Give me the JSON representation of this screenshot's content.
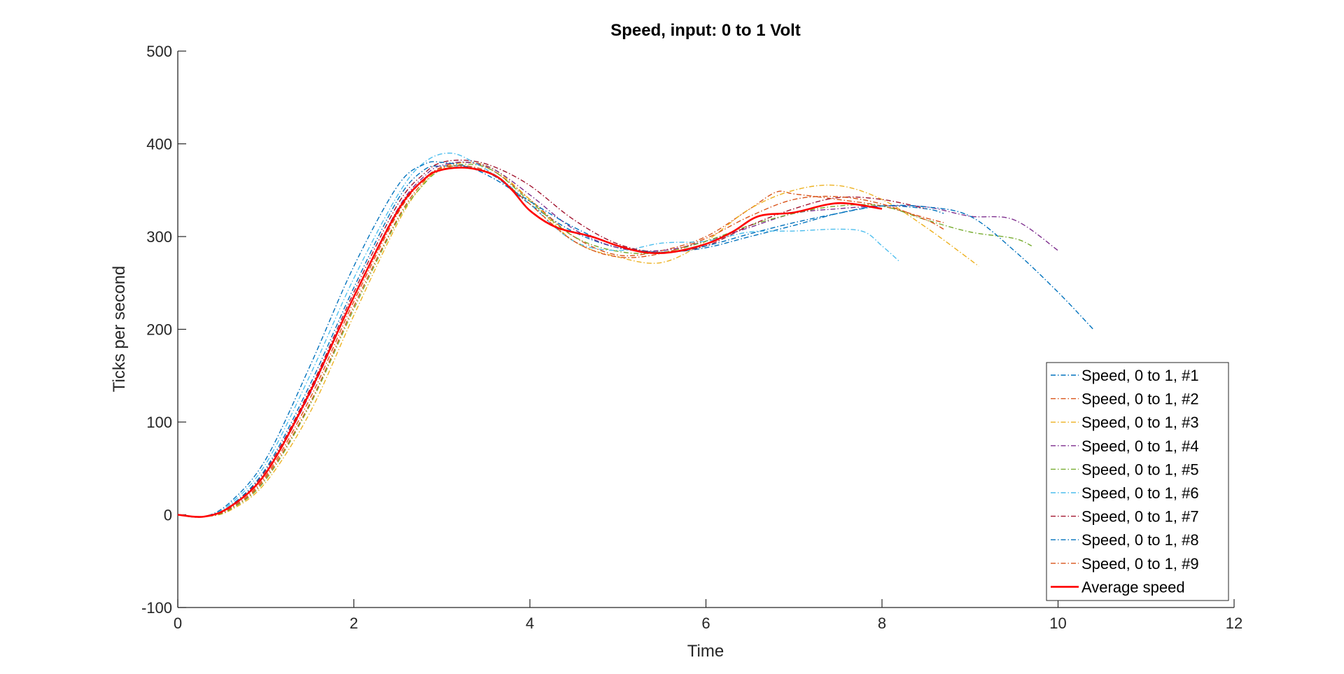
{
  "chart_data": {
    "type": "line",
    "title": "Speed, input: 0 to 1 Volt",
    "xlabel": "Time",
    "ylabel": "Ticks per second",
    "xlim": [
      0,
      12
    ],
    "ylim": [
      -100,
      500
    ],
    "xticks": [
      0,
      2,
      4,
      6,
      8,
      10,
      12
    ],
    "yticks": [
      -100,
      0,
      100,
      200,
      300,
      400,
      500
    ],
    "grid": false,
    "legend_position": "bottom-right",
    "series": [
      {
        "name": "Speed, 0 to 1, #1",
        "color": "#0072BD",
        "style": "dashdot",
        "x": [
          0,
          0.3,
          0.6,
          1.0,
          1.5,
          2.0,
          2.5,
          2.8,
          3.0,
          3.3,
          3.6,
          4.0,
          4.5,
          5.0,
          5.5,
          6.0,
          6.5,
          7.0,
          7.5,
          8.0,
          8.5,
          8.7
        ],
        "y": [
          0,
          -2,
          10,
          50,
          140,
          245,
          340,
          372,
          376,
          375,
          365,
          335,
          305,
          288,
          283,
          288,
          300,
          312,
          325,
          333,
          330,
          325
        ]
      },
      {
        "name": "Speed, 0 to 1, #2",
        "color": "#D95319",
        "style": "dashdot",
        "x": [
          0,
          0.3,
          0.6,
          1.0,
          1.5,
          2.0,
          2.5,
          2.8,
          3.0,
          3.3,
          3.6,
          4.0,
          4.5,
          5.0,
          5.5,
          6.0,
          6.5,
          6.8,
          7.0,
          7.5,
          8.0,
          8.5,
          8.7
        ],
        "y": [
          0,
          -2,
          6,
          40,
          120,
          225,
          320,
          360,
          375,
          380,
          370,
          340,
          300,
          280,
          285,
          300,
          330,
          348,
          346,
          340,
          333,
          320,
          315
        ]
      },
      {
        "name": "Speed, 0 to 1, #3",
        "color": "#EDB120",
        "style": "dashdot",
        "x": [
          0,
          0.3,
          0.6,
          1.0,
          1.5,
          2.0,
          2.5,
          2.8,
          3.0,
          3.3,
          3.6,
          4.0,
          4.5,
          5.0,
          5.5,
          6.0,
          6.5,
          7.0,
          7.5,
          8.0,
          8.5,
          9.1
        ],
        "y": [
          0,
          -2,
          5,
          35,
          110,
          215,
          315,
          358,
          373,
          380,
          372,
          340,
          295,
          278,
          272,
          295,
          330,
          350,
          355,
          340,
          310,
          268
        ]
      },
      {
        "name": "Speed, 0 to 1, #4",
        "color": "#7E2F8E",
        "style": "dashdot",
        "x": [
          0,
          0.3,
          0.6,
          1.0,
          1.5,
          2.0,
          2.5,
          2.8,
          3.0,
          3.3,
          3.6,
          4.0,
          4.5,
          5.0,
          5.5,
          6.0,
          6.5,
          7.0,
          7.5,
          8.0,
          8.5,
          9.0,
          9.5,
          10.0
        ],
        "y": [
          0,
          -2,
          8,
          45,
          130,
          235,
          330,
          365,
          377,
          380,
          372,
          345,
          308,
          288,
          285,
          295,
          310,
          325,
          330,
          333,
          332,
          322,
          318,
          285
        ]
      },
      {
        "name": "Speed, 0 to 1, #5",
        "color": "#77AC30",
        "style": "dashdot",
        "x": [
          0,
          0.3,
          0.6,
          1.0,
          1.5,
          2.0,
          2.5,
          2.8,
          3.0,
          3.3,
          3.6,
          4.0,
          4.5,
          5.0,
          5.5,
          6.0,
          6.5,
          7.0,
          7.5,
          8.0,
          8.5,
          9.0,
          9.5,
          9.7
        ],
        "y": [
          0,
          -2,
          6,
          38,
          118,
          222,
          318,
          357,
          372,
          378,
          370,
          338,
          300,
          284,
          283,
          295,
          312,
          325,
          333,
          333,
          318,
          305,
          298,
          290
        ]
      },
      {
        "name": "Speed, 0 to 1, #6",
        "color": "#4DBEEE",
        "style": "dashdot",
        "x": [
          0,
          0.3,
          0.6,
          1.0,
          1.5,
          2.0,
          2.5,
          2.8,
          3.1,
          3.4,
          3.7,
          4.0,
          4.5,
          5.0,
          5.5,
          6.0,
          6.5,
          7.0,
          7.5,
          7.8,
          8.0,
          8.2
        ],
        "y": [
          0,
          -2,
          12,
          55,
          150,
          255,
          345,
          380,
          390,
          378,
          360,
          335,
          295,
          285,
          293,
          295,
          305,
          306,
          308,
          305,
          290,
          273
        ]
      },
      {
        "name": "Speed, 0 to 1, #7",
        "color": "#A2142F",
        "style": "dashdot",
        "x": [
          0,
          0.3,
          0.6,
          1.0,
          1.5,
          2.0,
          2.5,
          2.8,
          3.0,
          3.3,
          3.6,
          4.0,
          4.5,
          5.0,
          5.5,
          6.0,
          6.5,
          7.0,
          7.5,
          8.0,
          8.5
        ],
        "y": [
          0,
          -2,
          9,
          48,
          135,
          240,
          335,
          368,
          380,
          382,
          375,
          355,
          318,
          292,
          283,
          290,
          312,
          330,
          342,
          340,
          330
        ]
      },
      {
        "name": "Speed, 0 to 1, #8",
        "color": "#0072BD",
        "style": "dashdot",
        "x": [
          0,
          0.3,
          0.6,
          1.0,
          1.5,
          2.0,
          2.5,
          2.8,
          3.0,
          3.3,
          3.6,
          4.0,
          4.5,
          5.0,
          5.5,
          6.0,
          6.5,
          7.0,
          7.5,
          8.0,
          8.5,
          9.0,
          9.5,
          10.0,
          10.4
        ],
        "y": [
          0,
          -2,
          14,
          60,
          160,
          268,
          355,
          378,
          380,
          375,
          362,
          338,
          310,
          290,
          283,
          290,
          303,
          315,
          325,
          333,
          332,
          322,
          285,
          240,
          200
        ]
      },
      {
        "name": "Speed, 0 to 1, #9",
        "color": "#D95319",
        "style": "dashdot",
        "x": [
          0,
          0.3,
          0.6,
          1.0,
          1.5,
          2.0,
          2.5,
          2.8,
          3.0,
          3.3,
          3.6,
          4.0,
          4.5,
          5.0,
          5.5,
          6.0,
          6.5,
          7.0,
          7.5,
          8.0,
          8.5,
          8.7
        ],
        "y": [
          0,
          -2,
          7,
          42,
          125,
          230,
          325,
          362,
          374,
          376,
          366,
          335,
          295,
          278,
          282,
          298,
          322,
          340,
          343,
          335,
          318,
          308
        ]
      },
      {
        "name": "Average speed",
        "color": "#FF0000",
        "style": "solid",
        "x": [
          0,
          0.3,
          0.6,
          1.0,
          1.5,
          2.0,
          2.5,
          2.8,
          3.0,
          3.3,
          3.6,
          3.8,
          4.0,
          4.3,
          4.7,
          5.0,
          5.3,
          5.6,
          6.0,
          6.3,
          6.6,
          7.0,
          7.5,
          8.0
        ],
        "y": [
          0,
          -2,
          9,
          45,
          132,
          235,
          328,
          362,
          372,
          374,
          366,
          350,
          328,
          310,
          300,
          290,
          283,
          283,
          292,
          305,
          322,
          326,
          336,
          330
        ]
      }
    ]
  }
}
